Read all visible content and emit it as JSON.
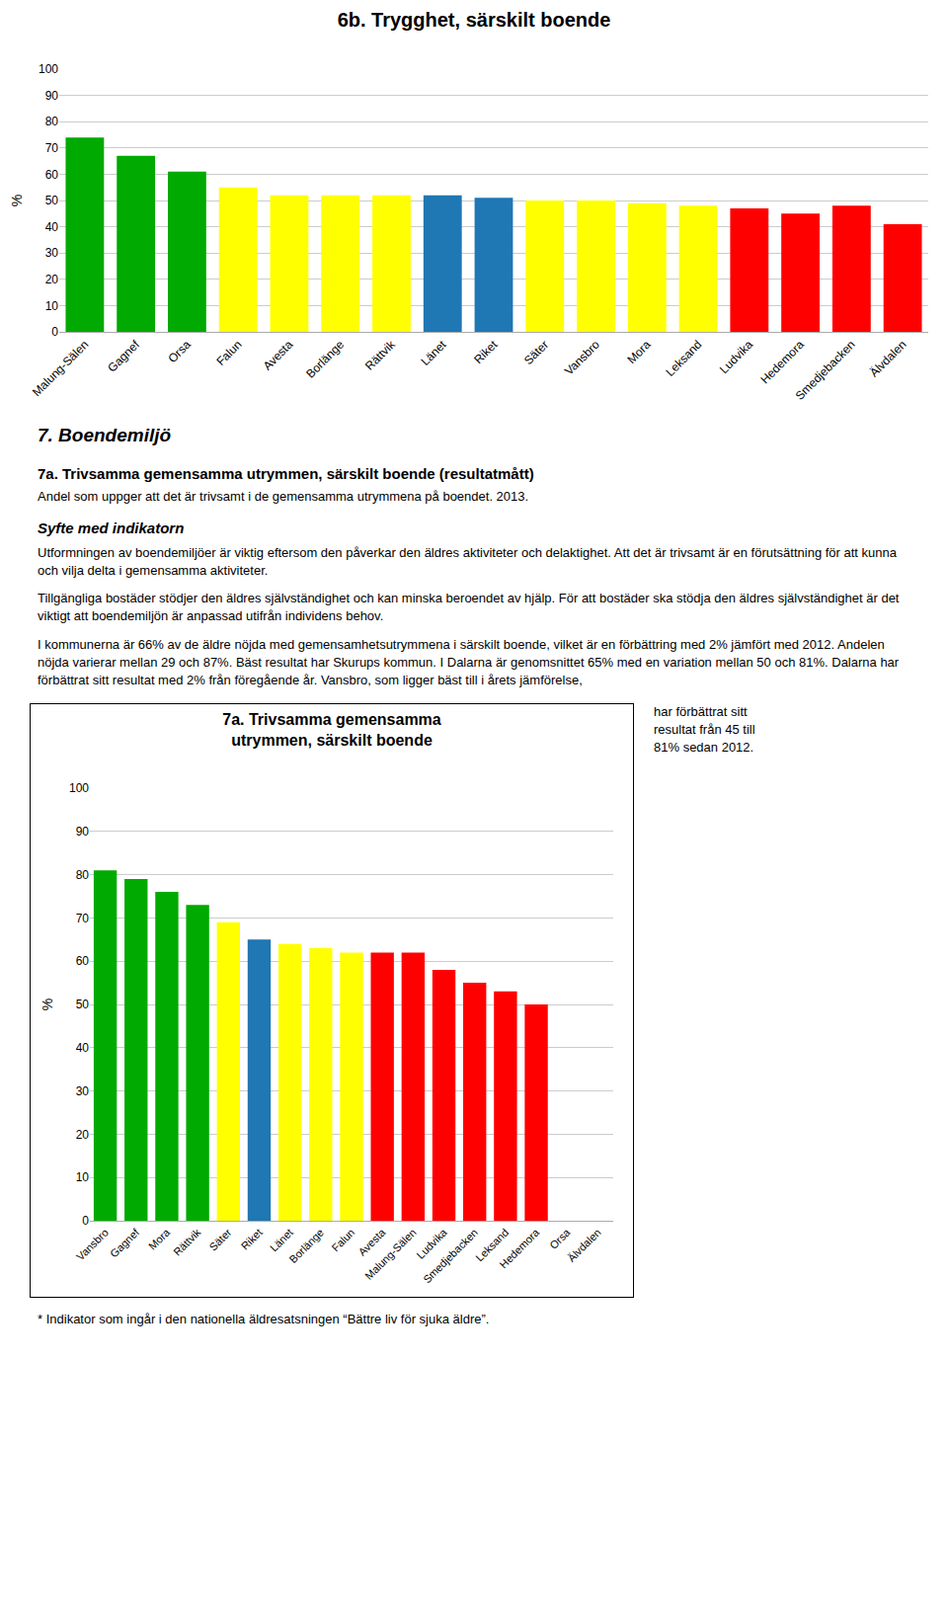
{
  "chart_data": [
    {
      "type": "bar",
      "title": "6b. Trygghet, särskilt boende",
      "categories": [
        "Malung-Sälen",
        "Gagnef",
        "Orsa",
        "Falun",
        "Avesta",
        "Borlänge",
        "Rättvik",
        "Länet",
        "Riket",
        "Säter",
        "Vansbro",
        "Mora",
        "Leksand",
        "Ludvika",
        "Hedemora",
        "Smedjebacken",
        "Älvdalen"
      ],
      "values": [
        74,
        67,
        61,
        55,
        52,
        52,
        52,
        52,
        51,
        50,
        50,
        49,
        48,
        47,
        45,
        48,
        41
      ],
      "colors": [
        "#00aa00",
        "#00aa00",
        "#00aa00",
        "#ffff00",
        "#ffff00",
        "#ffff00",
        "#ffff00",
        "#1f77b4",
        "#1f77b4",
        "#ffff00",
        "#ffff00",
        "#ffff00",
        "#ffff00",
        "#ff0000",
        "#ff0000",
        "#ff0000",
        "#ff0000"
      ],
      "ylabel": "%",
      "ylim": [
        0,
        100
      ],
      "yticks": [
        0,
        10,
        20,
        30,
        40,
        50,
        60,
        70,
        80,
        90,
        100
      ],
      "grid": true
    },
    {
      "type": "bar",
      "title": "7a. Trivsamma gemensamma\nutrymmen, särskilt boende",
      "categories": [
        "Vansbro",
        "Gagnef",
        "Mora",
        "Rättvik",
        "Säter",
        "Riket",
        "Länet",
        "Borlänge",
        "Falun",
        "Avesta",
        "Malung-Sälen",
        "Ludvika",
        "Smedjebacken",
        "Leksand",
        "Hedemora",
        "Orsa",
        "Älvdalen"
      ],
      "values": [
        81,
        79,
        76,
        73,
        69,
        65,
        64,
        63,
        62,
        62,
        62,
        58,
        55,
        53,
        50,
        0,
        0
      ],
      "colors": [
        "#00aa00",
        "#00aa00",
        "#00aa00",
        "#00aa00",
        "#ffff00",
        "#1f77b4",
        "#ffff00",
        "#ffff00",
        "#ffff00",
        "#ff0000",
        "#ff0000",
        "#ff0000",
        "#ff0000",
        "#ff0000",
        "#ff0000",
        "#ff0000",
        "#ff0000"
      ],
      "ylabel": "%",
      "ylim": [
        0,
        100
      ],
      "yticks": [
        0,
        10,
        20,
        30,
        40,
        50,
        60,
        70,
        80,
        90,
        100
      ],
      "grid": true
    }
  ],
  "section_title": "7. Boendemiljö",
  "subsection_title": "7a. Trivsamma gemensamma utrymmen, särskilt boende (resultatmått)",
  "subsection_subtitle": "Andel som uppger att det är trivsamt i de gemensamma utrymmena på boendet. 2013.",
  "syfte_title": "Syfte med indikatorn",
  "syfte_text1": "Utformningen av boendemiljöer är viktig eftersom den påverkar den äldres aktiviteter och delaktighet. Att det är trivsamt är en förutsättning för att kunna och vilja delta i gemensamma aktiviteter.",
  "syfte_text2": "Tillgängliga bostäder stödjer den äldres självständighet och kan minska beroendet av hjälp. För att bostäder ska stödja den äldres självständighet är det viktigt att boendemiljön är anpassad utifrån individens behov.",
  "para_text": "I kommunerna är 66% av de äldre nöjda med gemensamhetsutrymmena i särskilt boende, vilket är en förbättring med 2% jämfört med 2012. Andelen nöjda varierar mellan 29 och 87%. Bäst resultat har Skurups kommun. I Dalarna är genomsnittet 65% med en variation mellan 50 och 81%. Dalarna har förbättrat sitt resultat med 2% från föregående år. Vansbro, som ligger bäst till i årets jämförelse,",
  "side_text": "har förbättrat sitt\nresultat från 45 till\n81% sedan 2012.",
  "footnote": "* Indikator som ingår i den nationella äldresatsningen “Bättre liv för sjuka äldre”."
}
